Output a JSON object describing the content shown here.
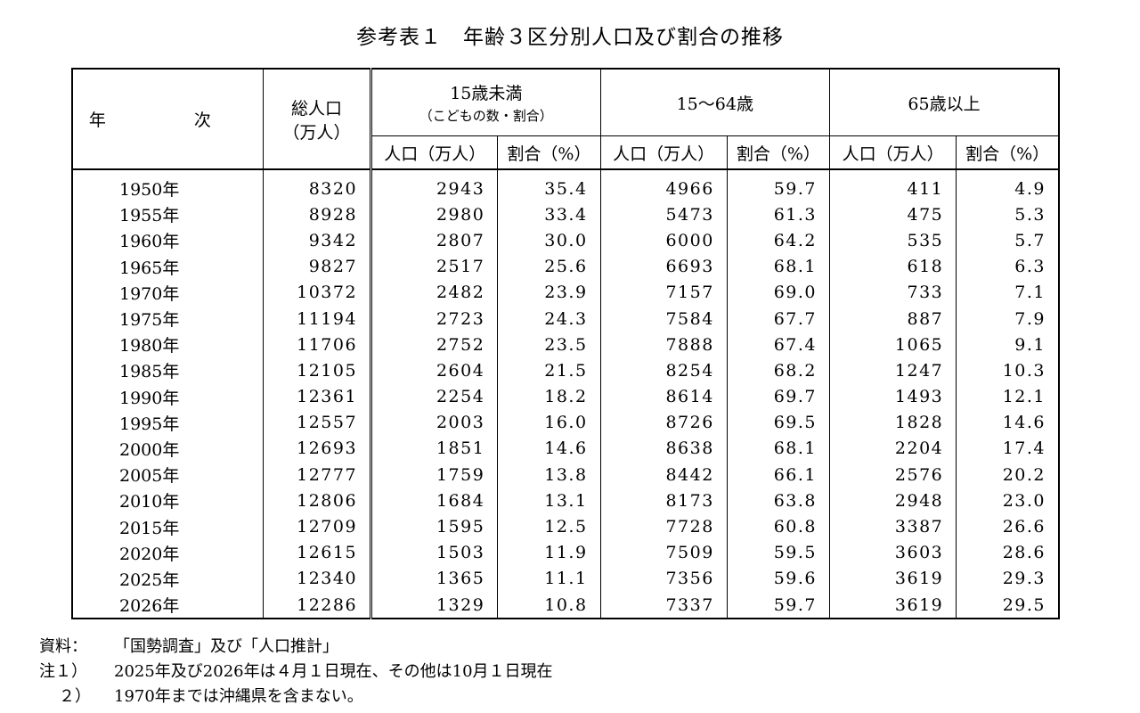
{
  "title": "参考表１　年齢３区分別人口及び割合の推移",
  "header": {
    "year": "年　次",
    "total_line1": "総人口",
    "total_line2": "（万人）",
    "group1_line1": "15歳未満",
    "group1_line2": "（こどもの数・割合）",
    "group2": "15～64歳",
    "group3": "65歳以上",
    "pop_label": "人口（万人）",
    "pct_label": "割合（%）"
  },
  "rows": [
    {
      "year": "1950年",
      "total": "8320",
      "p1": "2943",
      "r1": "35.4",
      "p2": "4966",
      "r2": "59.7",
      "p3": "411",
      "r3": "4.9"
    },
    {
      "year": "1955年",
      "total": "8928",
      "p1": "2980",
      "r1": "33.4",
      "p2": "5473",
      "r2": "61.3",
      "p3": "475",
      "r3": "5.3"
    },
    {
      "year": "1960年",
      "total": "9342",
      "p1": "2807",
      "r1": "30.0",
      "p2": "6000",
      "r2": "64.2",
      "p3": "535",
      "r3": "5.7"
    },
    {
      "year": "1965年",
      "total": "9827",
      "p1": "2517",
      "r1": "25.6",
      "p2": "6693",
      "r2": "68.1",
      "p3": "618",
      "r3": "6.3"
    },
    {
      "year": "1970年",
      "total": "10372",
      "p1": "2482",
      "r1": "23.9",
      "p2": "7157",
      "r2": "69.0",
      "p3": "733",
      "r3": "7.1"
    },
    {
      "year": "1975年",
      "total": "11194",
      "p1": "2723",
      "r1": "24.3",
      "p2": "7584",
      "r2": "67.7",
      "p3": "887",
      "r3": "7.9"
    },
    {
      "year": "1980年",
      "total": "11706",
      "p1": "2752",
      "r1": "23.5",
      "p2": "7888",
      "r2": "67.4",
      "p3": "1065",
      "r3": "9.1"
    },
    {
      "year": "1985年",
      "total": "12105",
      "p1": "2604",
      "r1": "21.5",
      "p2": "8254",
      "r2": "68.2",
      "p3": "1247",
      "r3": "10.3"
    },
    {
      "year": "1990年",
      "total": "12361",
      "p1": "2254",
      "r1": "18.2",
      "p2": "8614",
      "r2": "69.7",
      "p3": "1493",
      "r3": "12.1"
    },
    {
      "year": "1995年",
      "total": "12557",
      "p1": "2003",
      "r1": "16.0",
      "p2": "8726",
      "r2": "69.5",
      "p3": "1828",
      "r3": "14.6"
    },
    {
      "year": "2000年",
      "total": "12693",
      "p1": "1851",
      "r1": "14.6",
      "p2": "8638",
      "r2": "68.1",
      "p3": "2204",
      "r3": "17.4"
    },
    {
      "year": "2005年",
      "total": "12777",
      "p1": "1759",
      "r1": "13.8",
      "p2": "8442",
      "r2": "66.1",
      "p3": "2576",
      "r3": "20.2"
    },
    {
      "year": "2010年",
      "total": "12806",
      "p1": "1684",
      "r1": "13.1",
      "p2": "8173",
      "r2": "63.8",
      "p3": "2948",
      "r3": "23.0"
    },
    {
      "year": "2015年",
      "total": "12709",
      "p1": "1595",
      "r1": "12.5",
      "p2": "7728",
      "r2": "60.8",
      "p3": "3387",
      "r3": "26.6"
    },
    {
      "year": "2020年",
      "total": "12615",
      "p1": "1503",
      "r1": "11.9",
      "p2": "7509",
      "r2": "59.5",
      "p3": "3603",
      "r3": "28.6"
    },
    {
      "year": "2025年",
      "total": "12340",
      "p1": "1365",
      "r1": "11.1",
      "p2": "7356",
      "r2": "59.6",
      "p3": "3619",
      "r3": "29.3"
    },
    {
      "year": "2026年",
      "total": "12286",
      "p1": "1329",
      "r1": "10.8",
      "p2": "7337",
      "r2": "59.7",
      "p3": "3619",
      "r3": "29.5"
    }
  ],
  "notes": {
    "source_label": "資料：",
    "source_text": "「国勢調査」及び「人口推計」",
    "note1_label": "注１）",
    "note1_text": "2025年及び2026年は４月１日現在、その他は10月１日現在",
    "note2_label": "２）",
    "note2_text": "1970年までは沖縄県を含まない。"
  }
}
